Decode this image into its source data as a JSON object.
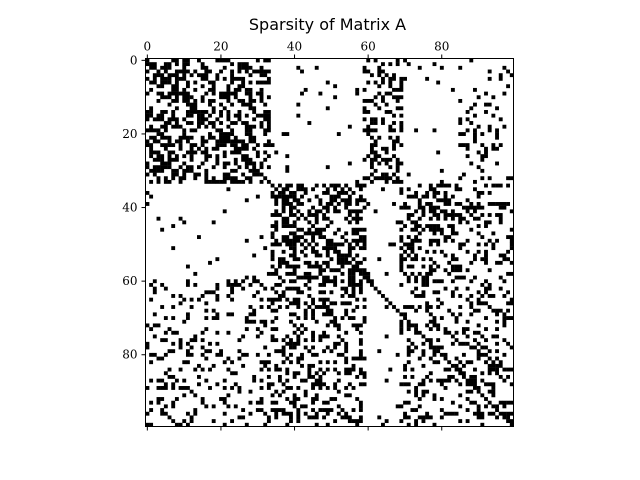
{
  "chart_data": {
    "type": "heatmap",
    "subtype": "sparsity",
    "title": "Sparsity of Matrix A",
    "shape": [
      100,
      100
    ],
    "x_ticks": [
      "0",
      "20",
      "40",
      "60",
      "80"
    ],
    "y_ticks": [
      "0",
      "20",
      "40",
      "60",
      "80"
    ],
    "x_tick_values": [
      0,
      20,
      40,
      60,
      80
    ],
    "y_tick_values": [
      0,
      20,
      40,
      60,
      80
    ],
    "x_axis_position": "top",
    "xlim": [
      -0.5,
      99.5
    ],
    "ylim": [
      99.5,
      -0.5
    ],
    "grid": false,
    "colors": {
      "nonzero": "#000000",
      "zero": "#ffffff"
    },
    "dense_blocks": [
      {
        "rows": [
          0,
          33
        ],
        "cols": [
          0,
          33
        ],
        "density": 0.42
      },
      {
        "rows": [
          34,
          60
        ],
        "cols": [
          34,
          59
        ],
        "density": 0.45
      },
      {
        "rows": [
          34,
          60
        ],
        "cols": [
          69,
          85
        ],
        "density": 0.42
      },
      {
        "rows": [
          60,
          99
        ],
        "cols": [
          34,
          59
        ],
        "density": 0.33
      },
      {
        "rows": [
          0,
          33
        ],
        "cols": [
          59,
          69
        ],
        "density": 0.32
      },
      {
        "rows": [
          60,
          99
        ],
        "cols": [
          69,
          99
        ],
        "density": 0.26
      },
      {
        "rows": [
          60,
          99
        ],
        "cols": [
          0,
          33
        ],
        "density": 0.2
      },
      {
        "rows": [
          0,
          33
        ],
        "cols": [
          85,
          99
        ],
        "density": 0.14
      },
      {
        "rows": [
          34,
          60
        ],
        "cols": [
          86,
          99
        ],
        "density": 0.22
      }
    ],
    "background_density": 0.03
  }
}
